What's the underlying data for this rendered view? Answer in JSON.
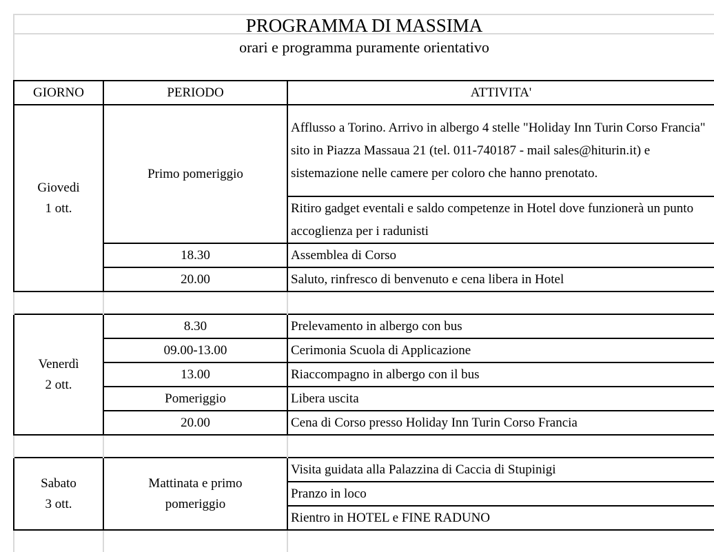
{
  "title": "PROGRAMMA DI MASSIMA",
  "subtitle": "orari e programma puramente orientativo",
  "headers": {
    "giorno": "GIORNO",
    "periodo": "PERIODO",
    "attivita": "ATTIVITA'"
  },
  "days": [
    {
      "day": "Giovedi",
      "date": "1 ott.",
      "rows": [
        {
          "periodo": "Primo pomeriggio",
          "attivita": [
            "Afflusso a Torino. Arrivo in albergo 4 stelle \"Holiday Inn Turin Corso Francia\" sito in Piazza Massaua 21 (tel. 011-740187 - mail sales@hiturin.it) e sistemazione nelle camere per coloro che hanno prenotato.",
            "Ritiro gadget eventali e saldo competenze in Hotel dove funzionerà un punto accoglienza per i radunisti"
          ]
        },
        {
          "periodo": "18.30",
          "attivita": [
            "Assemblea di Corso"
          ]
        },
        {
          "periodo": "20.00",
          "attivita": [
            "Saluto, rinfresco di benvenuto e cena libera in Hotel"
          ]
        }
      ]
    },
    {
      "day": "Venerdì",
      "date": "2 ott.",
      "rows": [
        {
          "periodo": "8.30",
          "attivita": [
            "Prelevamento in albergo con bus"
          ]
        },
        {
          "periodo": "09.00-13.00",
          "attivita": [
            "Cerimonia Scuola di Applicazione"
          ]
        },
        {
          "periodo": "13.00",
          "attivita": [
            "Riaccompagno in albergo con il bus"
          ]
        },
        {
          "periodo": "Pomeriggio",
          "attivita": [
            "Libera uscita"
          ]
        },
        {
          "periodo": "20.00",
          "attivita": [
            "Cena di Corso presso Holiday Inn Turin Corso Francia"
          ]
        }
      ]
    },
    {
      "day": "Sabato",
      "date": "3 ott.",
      "rows": [
        {
          "periodo": "Mattinata e primo pomeriggio",
          "attivita": [
            "Visita guidata alla Palazzina di Caccia di Stupinigi",
            "Pranzo in loco",
            "Rientro in HOTEL e FINE RADUNO"
          ]
        }
      ]
    }
  ]
}
